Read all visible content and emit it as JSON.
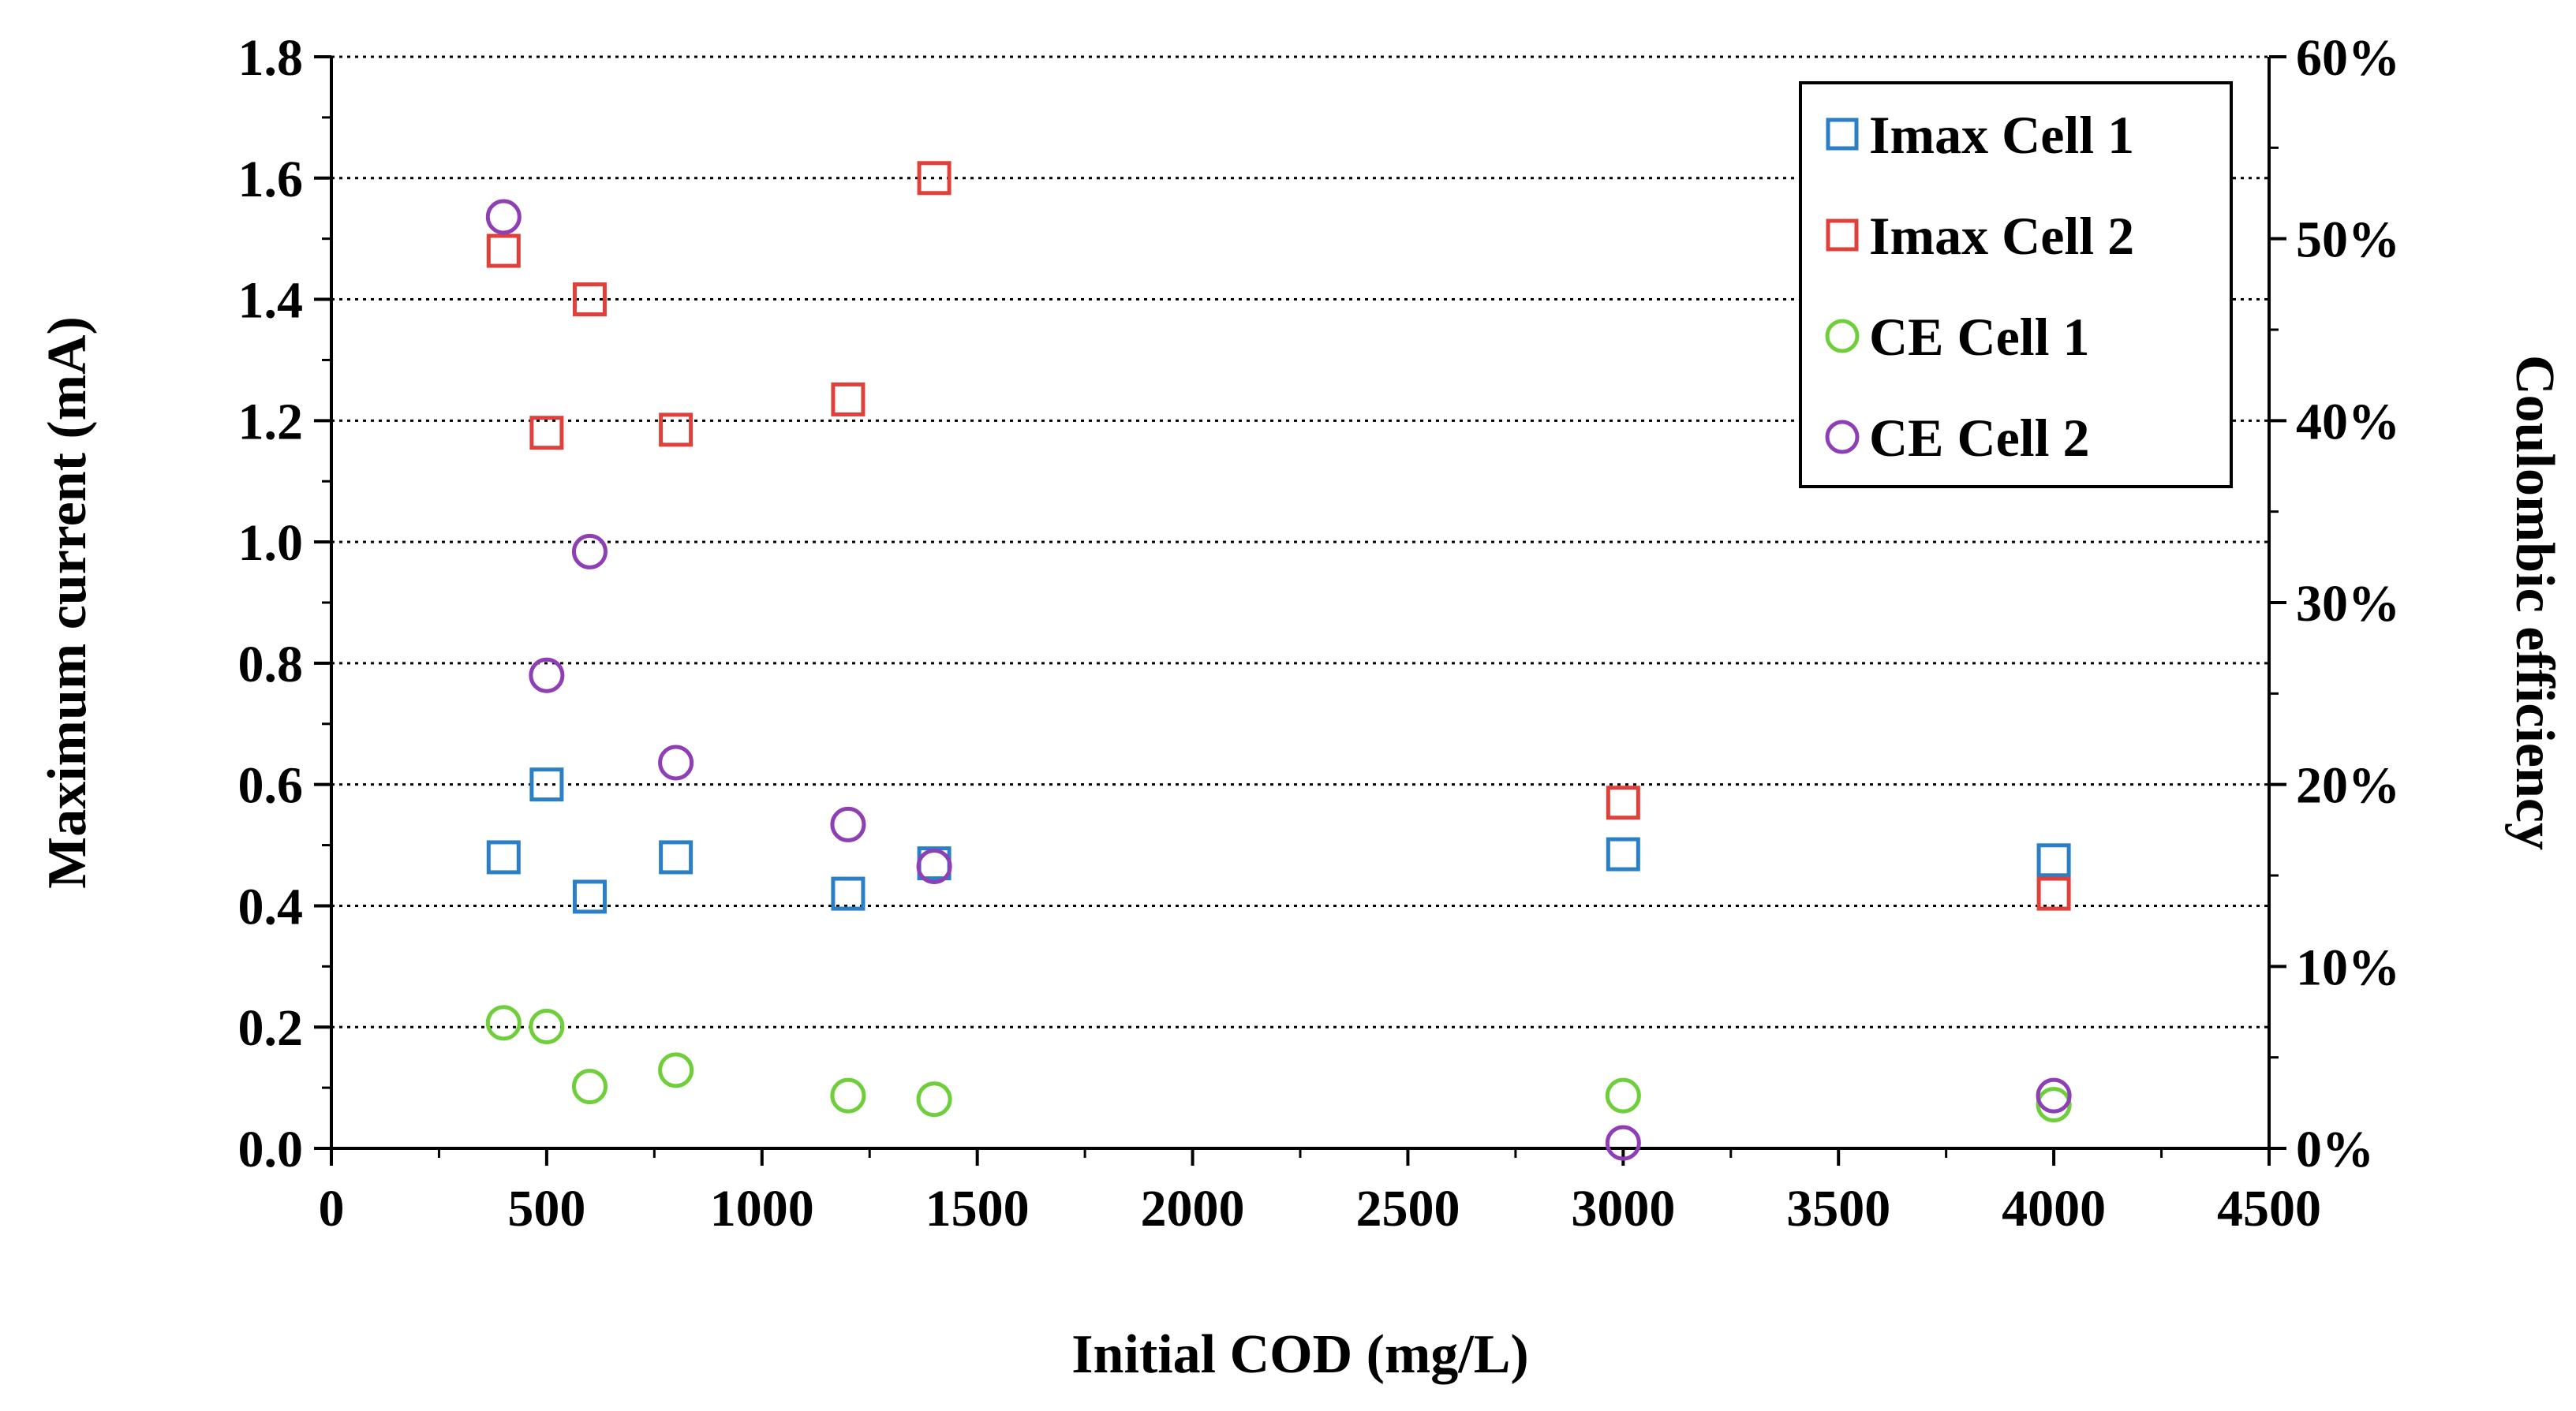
{
  "chart_data": {
    "type": "scatter",
    "xlabel": "Initial COD (mg/L)",
    "ylabel": "Maximum current (mA)",
    "y2label": "Coulombic efficiency",
    "xlim": [
      0,
      4500
    ],
    "ylim": [
      0,
      1.8
    ],
    "y2lim": [
      0,
      60
    ],
    "x_ticks": [
      0,
      500,
      1000,
      1500,
      2000,
      2500,
      3000,
      3500,
      4000,
      4500
    ],
    "x_tick_labels": [
      "0",
      "500",
      "1000",
      "1500",
      "2000",
      "2500",
      "3000",
      "3500",
      "4000",
      "4500"
    ],
    "y_ticks": [
      0,
      0.2,
      0.4,
      0.6,
      0.8,
      1.0,
      1.2,
      1.4,
      1.6,
      1.8
    ],
    "y_tick_labels": [
      "0.0",
      "0.2",
      "0.4",
      "0.6",
      "0.8",
      "1.0",
      "1.2",
      "1.4",
      "1.6",
      "1.8"
    ],
    "y2_ticks": [
      0,
      10,
      20,
      30,
      40,
      50,
      60
    ],
    "y2_tick_labels": [
      "0%",
      "10%",
      "20%",
      "30%",
      "40%",
      "50%",
      "60%"
    ],
    "grid": "horizontal dotted",
    "legend_position": "top-right",
    "series": [
      {
        "name": "Imax Cell 1",
        "axis": "left",
        "marker": "square",
        "color": "#2a7fc6",
        "x": [
          400,
          500,
          600,
          800,
          1200,
          1400,
          3000,
          4000
        ],
        "y": [
          0.48,
          0.6,
          0.415,
          0.48,
          0.42,
          0.47,
          0.485,
          0.475
        ]
      },
      {
        "name": "Imax Cell 2",
        "axis": "left",
        "marker": "square",
        "color": "#e0403a",
        "x": [
          400,
          500,
          600,
          800,
          1200,
          1400,
          3000,
          4000
        ],
        "y": [
          1.48,
          1.18,
          1.4,
          1.185,
          1.235,
          1.6,
          0.57,
          0.42
        ]
      },
      {
        "name": "CE Cell 1",
        "axis": "right",
        "marker": "circle",
        "color": "#6fcf3a",
        "x": [
          400,
          500,
          600,
          800,
          1200,
          1400,
          3000,
          4000
        ],
        "y": [
          6.9,
          6.7,
          3.4,
          4.3,
          2.9,
          2.7,
          2.9,
          2.4
        ]
      },
      {
        "name": "CE Cell 2",
        "axis": "right",
        "marker": "circle",
        "color": "#8e3fb5",
        "x": [
          400,
          500,
          600,
          800,
          1200,
          1400,
          3000,
          4000
        ],
        "y": [
          51.2,
          26.0,
          32.8,
          21.2,
          17.8,
          15.5,
          0.3,
          2.9
        ]
      }
    ]
  }
}
